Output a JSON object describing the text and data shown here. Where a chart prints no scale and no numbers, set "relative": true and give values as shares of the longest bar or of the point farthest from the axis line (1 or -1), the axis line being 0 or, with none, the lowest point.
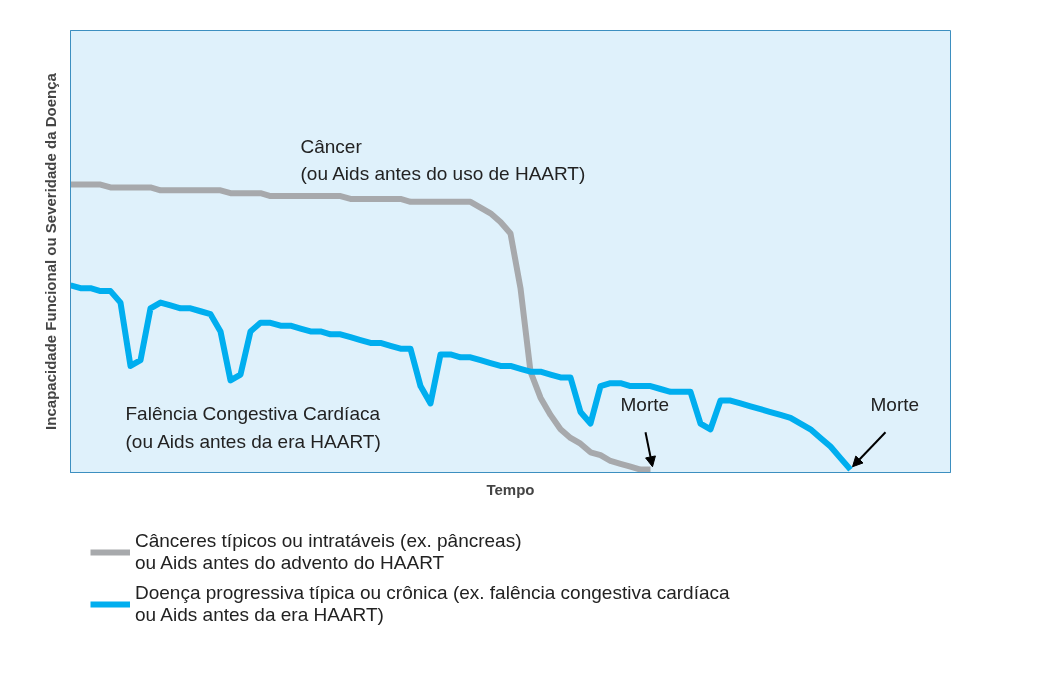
{
  "chart_data": {
    "type": "line",
    "relative": true,
    "xlabel": "Tempo",
    "ylabel": "Incapacidade Funcional ou Severidade da Doença",
    "categories": [
      null,
      null,
      null,
      null,
      null,
      null,
      null,
      null,
      null,
      null,
      null,
      null,
      null,
      null,
      null,
      null,
      null,
      null,
      null,
      null,
      null,
      null,
      null,
      null,
      null,
      null,
      null,
      null,
      null,
      null,
      null,
      null,
      null,
      null,
      null,
      null,
      null,
      null,
      null,
      null,
      null,
      null,
      null,
      null,
      null,
      null,
      null,
      null,
      null,
      null,
      null,
      null,
      null,
      null,
      null,
      null,
      null,
      null,
      null,
      null,
      null,
      null,
      null,
      null,
      null,
      null,
      null,
      null,
      null,
      null,
      null,
      null,
      null,
      null,
      null,
      null,
      null,
      null,
      null,
      null,
      null,
      null,
      null,
      null,
      null,
      null,
      null,
      null,
      null
    ],
    "series": [
      {
        "name": "Cânceres típicos ou intratáveis (ex. pâncreas)\nou Aids antes do advento do HAART",
        "color": "#a7a9ac",
        "values": [
          1.0,
          1.0,
          1.0,
          1.0,
          0.99,
          0.99,
          0.99,
          0.99,
          0.99,
          0.98,
          0.98,
          0.98,
          0.98,
          0.98,
          0.98,
          0.98,
          0.97,
          0.97,
          0.97,
          0.97,
          0.96,
          0.96,
          0.96,
          0.96,
          0.96,
          0.96,
          0.96,
          0.96,
          0.95,
          0.95,
          0.95,
          0.95,
          0.95,
          0.95,
          0.94,
          0.94,
          0.94,
          0.94,
          0.94,
          0.94,
          0.94,
          0.92,
          0.9,
          0.87,
          0.83,
          0.64,
          0.35,
          0.26,
          0.2,
          0.15,
          0.12,
          0.1,
          0.07,
          0.06,
          0.04,
          0.03,
          0.02,
          0.01,
          0.01,
          null,
          null,
          null,
          null,
          null,
          null,
          null,
          null,
          null,
          null,
          null,
          null,
          null,
          null,
          null,
          null,
          null,
          null,
          null,
          null,
          null,
          null,
          null,
          null,
          null,
          null,
          null,
          null,
          null,
          null
        ]
      },
      {
        "name": "Doença progressiva típica ou crônica (ex. falência congestiva cardíaca\nou Aids antes da era HAART)",
        "color": "#00aeef",
        "values": [
          0.65,
          0.64,
          0.64,
          0.63,
          0.63,
          0.59,
          0.37,
          0.39,
          0.57,
          0.59,
          0.58,
          0.57,
          0.57,
          0.56,
          0.55,
          0.49,
          0.32,
          0.34,
          0.49,
          0.52,
          0.52,
          0.51,
          0.51,
          0.5,
          0.49,
          0.49,
          0.48,
          0.48,
          0.47,
          0.46,
          0.45,
          0.45,
          0.44,
          0.43,
          0.43,
          0.3,
          0.24,
          0.41,
          0.41,
          0.4,
          0.4,
          0.39,
          0.38,
          0.37,
          0.37,
          0.36,
          0.35,
          0.35,
          0.34,
          0.33,
          0.33,
          0.21,
          0.17,
          0.3,
          0.31,
          0.31,
          0.3,
          0.3,
          0.3,
          0.29,
          0.28,
          0.28,
          0.28,
          0.17,
          0.15,
          0.25,
          0.25,
          0.24,
          0.23,
          0.22,
          0.21,
          0.2,
          0.19,
          0.17,
          0.15,
          0.12,
          0.09,
          0.05,
          0.01,
          null,
          null,
          null,
          null,
          null,
          null,
          null,
          null,
          null,
          null
        ]
      }
    ],
    "annotations": [
      "Câncer\n(ou Aids antes do uso de HAART)",
      "Falência Congestiva Cardíaca\n(ou Aids antes da era HAART)",
      "Morte",
      "Morte"
    ],
    "legend": "bottom"
  }
}
